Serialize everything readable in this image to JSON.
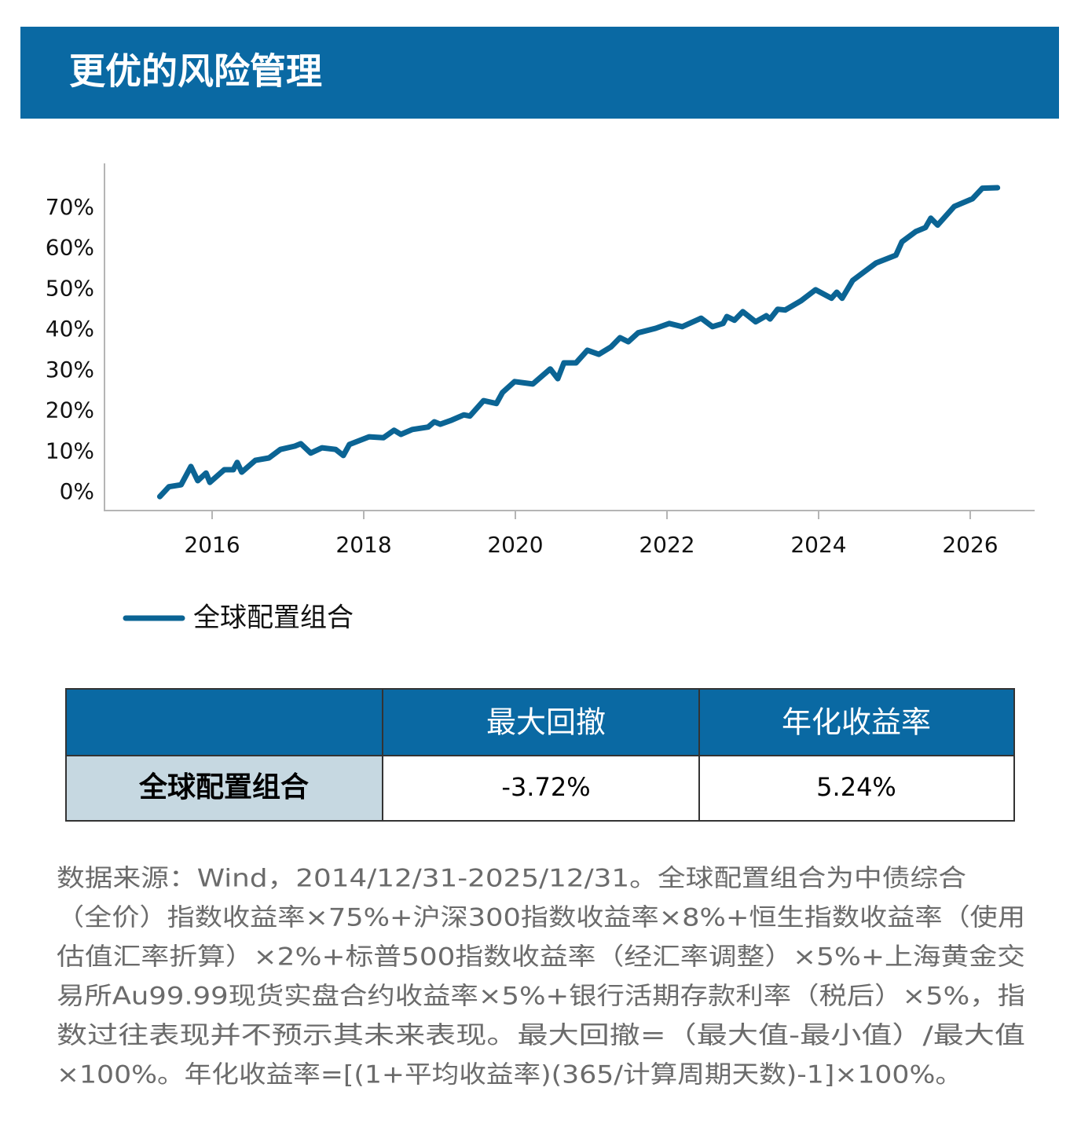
{
  "header": {
    "title": "更优的风险管理"
  },
  "chart_data": {
    "type": "line",
    "x": [
      2015.31,
      2015.43,
      2015.59,
      2015.72,
      2015.81,
      2015.92,
      2015.97,
      2016.16,
      2016.28,
      2016.33,
      2016.39,
      2016.57,
      2016.75,
      2016.9,
      2017.09,
      2017.17,
      2017.3,
      2017.45,
      2017.63,
      2017.73,
      2017.81,
      2018.07,
      2018.26,
      2018.4,
      2018.49,
      2018.64,
      2018.85,
      2018.93,
      2019.01,
      2019.16,
      2019.32,
      2019.4,
      2019.58,
      2019.75,
      2019.83,
      2019.99,
      2020.23,
      2020.46,
      2020.56,
      2020.64,
      2020.8,
      2020.95,
      2021.1,
      2021.26,
      2021.38,
      2021.49,
      2021.62,
      2021.85,
      2022.03,
      2022.2,
      2022.45,
      2022.6,
      2022.74,
      2022.79,
      2022.89,
      2023.0,
      2023.17,
      2023.31,
      2023.36,
      2023.46,
      2023.56,
      2023.77,
      2023.96,
      2024.17,
      2024.24,
      2024.31,
      2024.45,
      2024.76,
      2025.02,
      2025.1,
      2025.28,
      2025.41,
      2025.48,
      2025.57,
      2025.79,
      2026.03,
      2026.16,
      2026.36
    ],
    "series": [
      {
        "name": "全球配置组合",
        "color": "#0b6494",
        "values": [
          -1.0,
          1.4,
          1.9,
          6.4,
          2.9,
          4.8,
          2.5,
          5.6,
          5.6,
          7.4,
          5.0,
          7.9,
          8.5,
          10.6,
          11.4,
          12.0,
          9.7,
          11.0,
          10.6,
          9.1,
          11.8,
          13.7,
          13.5,
          15.3,
          14.3,
          15.5,
          16.1,
          17.4,
          16.8,
          17.8,
          19.1,
          18.8,
          22.6,
          21.9,
          24.6,
          27.3,
          26.7,
          30.4,
          28.0,
          31.9,
          31.9,
          35.0,
          34.0,
          35.8,
          38.1,
          37.1,
          39.3,
          40.4,
          41.6,
          40.8,
          42.9,
          40.8,
          41.6,
          43.3,
          42.4,
          44.5,
          42.0,
          43.5,
          42.7,
          45.1,
          44.9,
          47.2,
          49.9,
          47.8,
          49.3,
          47.8,
          52.2,
          56.5,
          58.4,
          61.7,
          64.2,
          65.2,
          67.5,
          65.8,
          70.4,
          72.3,
          74.9,
          75.0
        ]
      }
    ],
    "xlim": [
      2014.58,
      2026.85
    ],
    "xticks": [
      2016,
      2018,
      2020,
      2022,
      2024,
      2026
    ],
    "ylim": [
      -4.45,
      81
    ],
    "yticks": [
      {
        "value": 0,
        "label": "0%"
      },
      {
        "value": 10,
        "label": "10%"
      },
      {
        "value": 20,
        "label": "20%"
      },
      {
        "value": 30,
        "label": "30%"
      },
      {
        "value": 40,
        "label": "40%"
      },
      {
        "value": 50,
        "label": "50%"
      },
      {
        "value": 60,
        "label": "60%"
      },
      {
        "value": 70,
        "label": "70%"
      }
    ],
    "grid": false
  },
  "table": {
    "columns": [
      "最大回撤",
      "年化收益率"
    ],
    "rows": [
      {
        "label": "全球配置组合",
        "values": [
          "-3.72%",
          "5.24%"
        ]
      }
    ]
  },
  "footnote": {
    "lines": [
      "数据来源：Wind，2014/12/31-2025/12/31。全球配置组合为中债综合",
      "（全价）指数收益率×75%+沪深300指数收益率×8%+恒生指数收益率（使用",
      "估值汇率折算）×2%+标普500指数收益率（经汇率调整）×5%+上海黄金交",
      "易所Au99.99现货实盘合约收益率×5%+银行活期存款利率（税后）×5%，指",
      "数过往表现并不预示其未来表现。最大回撤=（最大值-最小值）/最大值",
      "×100%。年化收益率=[(1+平均收益率)(365/计算周期天数)-1]×100%。"
    ]
  }
}
